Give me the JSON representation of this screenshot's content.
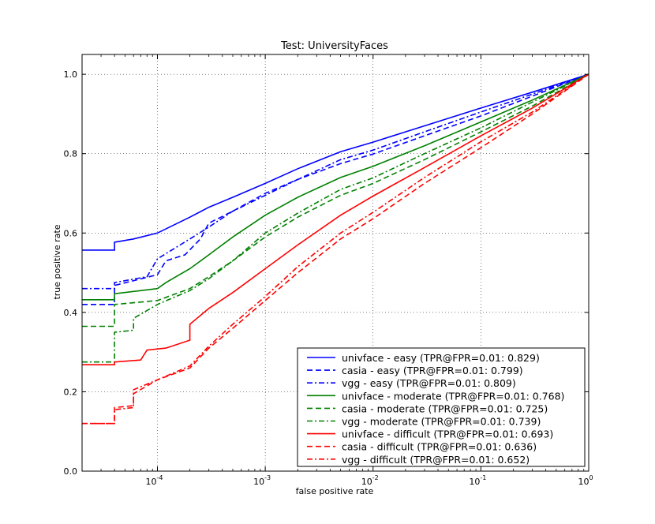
{
  "chart_data": {
    "type": "line",
    "title": "Test: UniversityFaces",
    "xlabel": "false positive rate",
    "ylabel": "true positive rate",
    "xscale": "log",
    "xlim": [
      2e-05,
      1
    ],
    "ylim": [
      0.0,
      1.05
    ],
    "grid": true,
    "legend_position": "lower right",
    "x_ticks": [
      {
        "value": 0.0001,
        "base": "10",
        "exp": "-4"
      },
      {
        "value": 0.001,
        "base": "10",
        "exp": "-3"
      },
      {
        "value": 0.01,
        "base": "10",
        "exp": "-2"
      },
      {
        "value": 0.1,
        "base": "10",
        "exp": "-1"
      },
      {
        "value": 1,
        "base": "10",
        "exp": "0"
      }
    ],
    "y_ticks": [
      "0.0",
      "0.2",
      "0.4",
      "0.6",
      "0.8",
      "1.0"
    ],
    "series": [
      {
        "name": "univface - easy (TPR@FPR=0.01: 0.829)",
        "color": "#0000ff",
        "dash": "solid",
        "points": [
          [
            2e-05,
            0.557
          ],
          [
            4e-05,
            0.557
          ],
          [
            4e-05,
            0.577
          ],
          [
            6e-05,
            0.585
          ],
          [
            0.0001,
            0.6
          ],
          [
            0.0002,
            0.64
          ],
          [
            0.0003,
            0.665
          ],
          [
            0.0005,
            0.69
          ],
          [
            0.001,
            0.725
          ],
          [
            0.002,
            0.762
          ],
          [
            0.005,
            0.805
          ],
          [
            0.01,
            0.829
          ],
          [
            0.03,
            0.87
          ],
          [
            0.1,
            0.915
          ],
          [
            0.3,
            0.955
          ],
          [
            1,
            1
          ]
        ]
      },
      {
        "name": "casia - easy (TPR@FPR=0.01: 0.799)",
        "color": "#0000ff",
        "dash": "7,4",
        "points": [
          [
            2e-05,
            0.42
          ],
          [
            4e-05,
            0.42
          ],
          [
            4e-05,
            0.468
          ],
          [
            0.0001,
            0.495
          ],
          [
            0.00012,
            0.53
          ],
          [
            0.00018,
            0.545
          ],
          [
            0.00025,
            0.585
          ],
          [
            0.0003,
            0.625
          ],
          [
            0.0005,
            0.655
          ],
          [
            0.001,
            0.7
          ],
          [
            0.002,
            0.735
          ],
          [
            0.005,
            0.775
          ],
          [
            0.01,
            0.799
          ],
          [
            0.03,
            0.845
          ],
          [
            0.1,
            0.895
          ],
          [
            0.3,
            0.945
          ],
          [
            1,
            1
          ]
        ]
      },
      {
        "name": "vgg - easy (TPR@FPR=0.01: 0.809)",
        "color": "#0000ff",
        "dash": "7,3,2,3",
        "points": [
          [
            2e-05,
            0.46
          ],
          [
            4e-05,
            0.46
          ],
          [
            4e-05,
            0.475
          ],
          [
            8e-05,
            0.49
          ],
          [
            0.0001,
            0.535
          ],
          [
            0.0002,
            0.585
          ],
          [
            0.0003,
            0.615
          ],
          [
            0.0005,
            0.655
          ],
          [
            0.001,
            0.695
          ],
          [
            0.002,
            0.735
          ],
          [
            0.005,
            0.785
          ],
          [
            0.01,
            0.809
          ],
          [
            0.03,
            0.855
          ],
          [
            0.1,
            0.905
          ],
          [
            0.3,
            0.95
          ],
          [
            1,
            1
          ]
        ]
      },
      {
        "name": "univface - moderate (TPR@FPR=0.01: 0.768)",
        "color": "#008000",
        "dash": "solid",
        "points": [
          [
            2e-05,
            0.432
          ],
          [
            4e-05,
            0.432
          ],
          [
            4e-05,
            0.447
          ],
          [
            0.0001,
            0.46
          ],
          [
            0.00012,
            0.475
          ],
          [
            0.0002,
            0.51
          ],
          [
            0.0003,
            0.545
          ],
          [
            0.0005,
            0.59
          ],
          [
            0.001,
            0.645
          ],
          [
            0.002,
            0.69
          ],
          [
            0.005,
            0.74
          ],
          [
            0.01,
            0.768
          ],
          [
            0.03,
            0.82
          ],
          [
            0.1,
            0.88
          ],
          [
            0.3,
            0.935
          ],
          [
            1,
            1
          ]
        ]
      },
      {
        "name": "casia - moderate (TPR@FPR=0.01: 0.725)",
        "color": "#008000",
        "dash": "7,4",
        "points": [
          [
            2e-05,
            0.365
          ],
          [
            4e-05,
            0.365
          ],
          [
            4e-05,
            0.42
          ],
          [
            0.0001,
            0.43
          ],
          [
            0.0002,
            0.46
          ],
          [
            0.0003,
            0.49
          ],
          [
            0.0005,
            0.53
          ],
          [
            0.001,
            0.59
          ],
          [
            0.002,
            0.64
          ],
          [
            0.005,
            0.695
          ],
          [
            0.01,
            0.725
          ],
          [
            0.03,
            0.785
          ],
          [
            0.1,
            0.855
          ],
          [
            0.3,
            0.92
          ],
          [
            1,
            1
          ]
        ]
      },
      {
        "name": "vgg - moderate (TPR@FPR=0.01: 0.739)",
        "color": "#008000",
        "dash": "7,3,2,3",
        "points": [
          [
            2e-05,
            0.275
          ],
          [
            4e-05,
            0.275
          ],
          [
            4e-05,
            0.35
          ],
          [
            6e-05,
            0.355
          ],
          [
            6e-05,
            0.385
          ],
          [
            0.0001,
            0.42
          ],
          [
            0.0002,
            0.455
          ],
          [
            0.0003,
            0.485
          ],
          [
            0.0005,
            0.53
          ],
          [
            0.001,
            0.6
          ],
          [
            0.002,
            0.65
          ],
          [
            0.005,
            0.71
          ],
          [
            0.01,
            0.739
          ],
          [
            0.03,
            0.8
          ],
          [
            0.1,
            0.865
          ],
          [
            0.3,
            0.93
          ],
          [
            1,
            1
          ]
        ]
      },
      {
        "name": "univface - difficult (TPR@FPR=0.01: 0.693)",
        "color": "#ff0000",
        "dash": "solid",
        "points": [
          [
            2e-05,
            0.268
          ],
          [
            4e-05,
            0.268
          ],
          [
            4e-05,
            0.275
          ],
          [
            7e-05,
            0.28
          ],
          [
            8e-05,
            0.305
          ],
          [
            0.00012,
            0.31
          ],
          [
            0.0002,
            0.33
          ],
          [
            0.0002,
            0.37
          ],
          [
            0.0003,
            0.41
          ],
          [
            0.0005,
            0.45
          ],
          [
            0.001,
            0.51
          ],
          [
            0.002,
            0.57
          ],
          [
            0.005,
            0.645
          ],
          [
            0.01,
            0.693
          ],
          [
            0.03,
            0.765
          ],
          [
            0.1,
            0.845
          ],
          [
            0.3,
            0.915
          ],
          [
            1,
            1
          ]
        ]
      },
      {
        "name": "casia - difficult (TPR@FPR=0.01: 0.636)",
        "color": "#ff0000",
        "dash": "7,4",
        "points": [
          [
            2e-05,
            0.12
          ],
          [
            4e-05,
            0.12
          ],
          [
            4e-05,
            0.16
          ],
          [
            6e-05,
            0.165
          ],
          [
            6e-05,
            0.195
          ],
          [
            0.0001,
            0.23
          ],
          [
            0.0002,
            0.26
          ],
          [
            0.0003,
            0.31
          ],
          [
            0.0005,
            0.36
          ],
          [
            0.001,
            0.43
          ],
          [
            0.002,
            0.5
          ],
          [
            0.005,
            0.585
          ],
          [
            0.01,
            0.636
          ],
          [
            0.03,
            0.725
          ],
          [
            0.1,
            0.815
          ],
          [
            0.3,
            0.9
          ],
          [
            1,
            1
          ]
        ]
      },
      {
        "name": "vgg - difficult (TPR@FPR=0.01: 0.652)",
        "color": "#ff0000",
        "dash": "7,3,2,3",
        "points": [
          [
            2e-05,
            0.12
          ],
          [
            4e-05,
            0.12
          ],
          [
            4e-05,
            0.155
          ],
          [
            6e-05,
            0.16
          ],
          [
            6e-05,
            0.205
          ],
          [
            0.0001,
            0.23
          ],
          [
            0.0002,
            0.265
          ],
          [
            0.0003,
            0.315
          ],
          [
            0.0005,
            0.37
          ],
          [
            0.001,
            0.44
          ],
          [
            0.002,
            0.515
          ],
          [
            0.005,
            0.6
          ],
          [
            0.01,
            0.652
          ],
          [
            0.03,
            0.74
          ],
          [
            0.1,
            0.83
          ],
          [
            0.3,
            0.905
          ],
          [
            1,
            1
          ]
        ]
      }
    ]
  }
}
